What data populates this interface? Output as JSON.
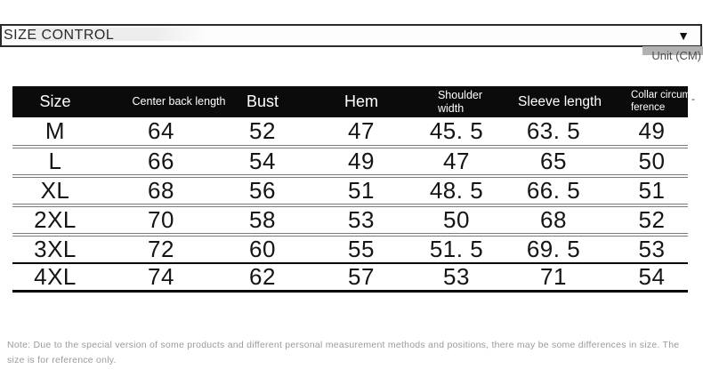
{
  "size_selector": {
    "label": "SIZE CONTROL",
    "arrow_icon": "▼"
  },
  "unit_label": "Unit (CM)",
  "table": {
    "columns": [
      {
        "label": "Size"
      },
      {
        "label": "Center back length"
      },
      {
        "label": "Bust"
      },
      {
        "label": "Hem"
      },
      {
        "label": "Shoulder\nwidth"
      },
      {
        "label": "Sleeve length"
      },
      {
        "label": "Collar circum\nference",
        "overflow_hyphen": "-"
      }
    ],
    "rows": [
      {
        "cells": [
          "M",
          "64",
          "52",
          "47",
          "45. 5",
          "63. 5",
          "49"
        ]
      },
      {
        "cells": [
          "L",
          "66",
          "54",
          "49",
          "47",
          "65",
          "50"
        ]
      },
      {
        "cells": [
          "XL",
          "68",
          "56",
          "51",
          "48. 5",
          "66. 5",
          "51"
        ]
      },
      {
        "cells": [
          "2XL",
          "70",
          "58",
          "53",
          "50",
          "68",
          "52"
        ]
      },
      {
        "cells": [
          "3XL",
          "72",
          "60",
          "55",
          "51. 5",
          "69. 5",
          "53"
        ]
      },
      {
        "cells": [
          "4XL",
          "74",
          "62",
          "57",
          "53",
          "71",
          "54"
        ]
      }
    ]
  },
  "note": "Note: Due to the special version of some products and different personal measurement methods and positions, there may be some differences in size. The size is for reference only.",
  "colors": {
    "header_bg": "#0b0b0b",
    "header_text": "#ffffff",
    "cell_text": "#151515",
    "separator_gray": "#7b7b7b",
    "separator_black": "#000000",
    "note_text": "#9b9b9b",
    "unit_text": "#4f4f4f",
    "unit_highlight": "#b2b2b2",
    "selector_border": "#2b2b2b",
    "selector_text": "#2b2b2b",
    "selector_highlight": "#ededed",
    "arrow_color": "#111111"
  }
}
